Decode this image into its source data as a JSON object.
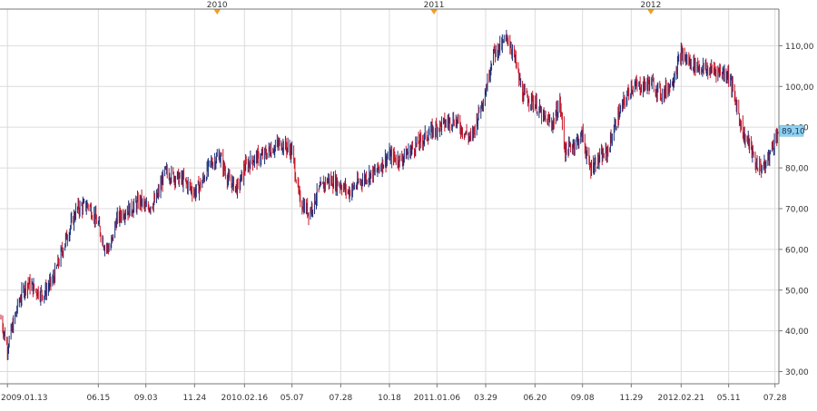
{
  "chart_data": {
    "type": "line",
    "style": "ohlc-bars",
    "colors": {
      "up": "#1a2f7a",
      "down": "#c8182a",
      "grid": "#dcdcdc",
      "axis": "#777777",
      "marker": "#f0a020",
      "price_tag": "#8fd3f0"
    },
    "grid": true,
    "ylim": [
      27,
      119
    ],
    "yticks": [
      {
        "value": 30,
        "label": "30,00"
      },
      {
        "value": 40,
        "label": "40,00"
      },
      {
        "value": 50,
        "label": "50,00"
      },
      {
        "value": 60,
        "label": "60,00"
      },
      {
        "value": 70,
        "label": "70,00"
      },
      {
        "value": 80,
        "label": "80,00"
      },
      {
        "value": 90,
        "label": "90,00"
      },
      {
        "value": 100,
        "label": "100,00"
      },
      {
        "value": 110,
        "label": "110,00"
      }
    ],
    "current_price": {
      "value": 89.1,
      "label": "89,10"
    },
    "x_start": "2009-01-02",
    "x_end": "2012-08-02",
    "xticks": [
      {
        "date": "2009-01-13",
        "label": "2009.01.13"
      },
      {
        "date": "2009-06-15",
        "label": "06.15"
      },
      {
        "date": "2009-09-03",
        "label": "09.03"
      },
      {
        "date": "2009-11-24",
        "label": "11.24"
      },
      {
        "date": "2010-02-16",
        "label": "2010.02.16"
      },
      {
        "date": "2010-05-07",
        "label": "05.07"
      },
      {
        "date": "2010-07-28",
        "label": "07.28"
      },
      {
        "date": "2010-10-18",
        "label": "10.18"
      },
      {
        "date": "2011-01-06",
        "label": "2011.01.06"
      },
      {
        "date": "2011-03-29",
        "label": "03.29"
      },
      {
        "date": "2011-06-20",
        "label": "06.20"
      },
      {
        "date": "2011-09-08",
        "label": "09.08"
      },
      {
        "date": "2011-11-29",
        "label": "11.29"
      },
      {
        "date": "2012-02-21",
        "label": "2012.02.21"
      },
      {
        "date": "2012-05-11",
        "label": "05.11"
      },
      {
        "date": "2012-07-28",
        "label": "07.28"
      }
    ],
    "year_markers": [
      {
        "date": "2010-01-01",
        "label": "2010"
      },
      {
        "date": "2011-01-01",
        "label": "2011"
      },
      {
        "date": "2012-01-01",
        "label": "2012"
      }
    ],
    "series": [
      {
        "x": [
          "2009-01-02",
          "2009-01-13",
          "2009-02-01",
          "2009-02-15",
          "2009-03-01",
          "2009-03-15",
          "2009-04-01",
          "2009-04-20",
          "2009-05-10",
          "2009-05-30",
          "2009-06-15",
          "2009-06-25",
          "2009-07-05",
          "2009-07-15",
          "2009-07-25",
          "2009-08-10",
          "2009-08-25",
          "2009-09-03",
          "2009-09-20",
          "2009-10-05",
          "2009-10-20",
          "2009-11-05",
          "2009-11-24",
          "2009-12-05",
          "2009-12-20",
          "2010-01-05",
          "2010-01-20",
          "2010-02-05",
          "2010-02-16",
          "2010-03-01",
          "2010-03-20",
          "2010-04-05",
          "2010-04-20",
          "2010-05-07",
          "2010-05-20",
          "2010-06-05",
          "2010-06-20",
          "2010-07-05",
          "2010-07-28",
          "2010-08-10",
          "2010-08-25",
          "2010-09-10",
          "2010-09-25",
          "2010-10-05",
          "2010-10-18",
          "2010-11-05",
          "2010-11-20",
          "2010-12-05",
          "2010-12-20",
          "2011-01-06",
          "2011-01-20",
          "2011-02-05",
          "2011-02-20",
          "2011-03-05",
          "2011-03-20",
          "2011-03-29",
          "2011-04-10",
          "2011-04-25",
          "2011-05-05",
          "2011-05-15",
          "2011-05-30",
          "2011-06-10",
          "2011-06-20",
          "2011-07-05",
          "2011-07-20",
          "2011-08-01",
          "2011-08-10",
          "2011-08-25",
          "2011-09-08",
          "2011-09-20",
          "2011-10-05",
          "2011-10-20",
          "2011-11-05",
          "2011-11-20",
          "2011-11-29",
          "2011-12-15",
          "2012-01-01",
          "2012-01-20",
          "2012-02-05",
          "2012-02-21",
          "2012-03-05",
          "2012-03-20",
          "2012-04-05",
          "2012-04-20",
          "2012-05-11",
          "2012-05-25",
          "2012-06-05",
          "2012-06-15",
          "2012-06-25",
          "2012-07-10",
          "2012-07-28",
          "2012-08-02"
        ],
        "values": [
          43,
          36,
          47,
          52,
          50,
          49,
          53,
          62,
          70,
          71,
          66,
          61,
          60,
          67,
          69,
          70,
          72,
          70,
          72,
          79,
          78,
          77,
          74,
          76,
          81,
          83,
          77,
          75,
          80,
          82,
          83,
          85,
          86,
          84,
          72,
          69,
          74,
          77,
          76,
          74,
          76,
          78,
          79,
          81,
          83,
          82,
          84,
          86,
          88,
          90,
          91,
          92,
          89,
          87,
          95,
          99,
          108,
          110,
          112,
          108,
          98,
          97,
          96,
          92,
          91,
          96,
          84,
          86,
          88,
          80,
          82,
          84,
          92,
          97,
          100,
          100,
          101,
          98,
          101,
          108,
          106,
          105,
          104,
          104,
          103,
          95,
          88,
          86,
          81,
          80,
          87,
          89.1
        ]
      }
    ]
  }
}
